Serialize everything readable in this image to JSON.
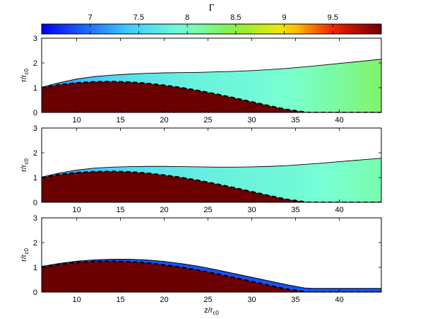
{
  "chart_data": {
    "type": "heatmap",
    "colorbar": {
      "title": "Γ",
      "range": [
        6.5,
        10.0
      ],
      "ticks": [
        7,
        7.5,
        8,
        8.5,
        9,
        9.5
      ],
      "tick_labels": [
        "7",
        "7.5",
        "8",
        "8.5",
        "9",
        "9.5"
      ],
      "colormap": "blue-cyan-green-yellow-red-darkred"
    },
    "xlabel_main": "z/r",
    "xlabel_sub": "c0",
    "ylabel_main": "r/r",
    "ylabel_sub": "c0",
    "xlim": [
      6,
      44.8
    ],
    "ylim": [
      0,
      3
    ],
    "xticks": [
      10,
      15,
      20,
      25,
      30,
      35,
      40
    ],
    "xtick_labels": [
      "10",
      "15",
      "20",
      "25",
      "30",
      "35",
      "40"
    ],
    "yticks": [
      0,
      1,
      2,
      3
    ],
    "ytick_labels": [
      "0",
      "1",
      "2",
      "3"
    ],
    "inner_boundary_color": "#6b0000",
    "panels": [
      {
        "id": "top",
        "show_xlabel": false,
        "outer_boundary": {
          "x": [
            6,
            8,
            10,
            12,
            14,
            16,
            18,
            20,
            22,
            24,
            26,
            28,
            30,
            32,
            34,
            36,
            38,
            40,
            42,
            44.8
          ],
          "y": [
            1.02,
            1.2,
            1.35,
            1.45,
            1.51,
            1.55,
            1.58,
            1.6,
            1.61,
            1.62,
            1.64,
            1.66,
            1.69,
            1.73,
            1.78,
            1.84,
            1.91,
            1.98,
            2.05,
            2.15
          ]
        },
        "inner_boundary": {
          "x": [
            6,
            8,
            10,
            12,
            14,
            16,
            18,
            20,
            22,
            24,
            26,
            28,
            30,
            32,
            34,
            36,
            36.5,
            44.8
          ],
          "y": [
            1.0,
            1.12,
            1.2,
            1.24,
            1.25,
            1.23,
            1.18,
            1.1,
            1.0,
            0.88,
            0.74,
            0.59,
            0.43,
            0.27,
            0.12,
            0.02,
            0.0,
            0.0
          ]
        },
        "gamma_vs_z": {
          "x": [
            6,
            10,
            15,
            20,
            25,
            30,
            35,
            40,
            44.8
          ],
          "gamma": [
            7.1,
            7.3,
            7.6,
            7.75,
            7.85,
            7.9,
            8.0,
            8.15,
            8.35
          ]
        }
      },
      {
        "id": "middle",
        "show_xlabel": false,
        "outer_boundary": {
          "x": [
            6,
            8,
            10,
            12,
            14,
            16,
            18,
            20,
            22,
            24,
            26,
            28,
            30,
            32,
            34,
            36,
            38,
            40,
            42,
            44.8
          ],
          "y": [
            1.02,
            1.18,
            1.3,
            1.38,
            1.42,
            1.44,
            1.45,
            1.45,
            1.44,
            1.43,
            1.42,
            1.42,
            1.43,
            1.45,
            1.48,
            1.53,
            1.58,
            1.64,
            1.7,
            1.78
          ]
        },
        "inner_boundary": {
          "x": [
            6,
            8,
            10,
            12,
            14,
            16,
            18,
            20,
            22,
            24,
            26,
            28,
            30,
            32,
            34,
            36,
            36.5,
            44.8
          ],
          "y": [
            1.0,
            1.12,
            1.2,
            1.24,
            1.25,
            1.23,
            1.18,
            1.1,
            1.0,
            0.88,
            0.74,
            0.59,
            0.43,
            0.27,
            0.12,
            0.02,
            0.0,
            0.0
          ]
        },
        "gamma_vs_z": {
          "x": [
            6,
            10,
            15,
            20,
            25,
            30,
            35,
            40,
            44.8
          ],
          "gamma": [
            7.1,
            7.3,
            7.55,
            7.7,
            7.8,
            7.85,
            7.9,
            8.0,
            8.1
          ]
        }
      },
      {
        "id": "bottom",
        "show_xlabel": true,
        "outer_boundary": {
          "x": [
            6,
            8,
            10,
            12,
            14,
            16,
            18,
            20,
            22,
            24,
            26,
            28,
            30,
            32,
            34,
            36,
            37,
            44.8
          ],
          "y": [
            1.04,
            1.16,
            1.25,
            1.3,
            1.33,
            1.33,
            1.3,
            1.24,
            1.15,
            1.04,
            0.9,
            0.75,
            0.6,
            0.45,
            0.3,
            0.17,
            0.15,
            0.15
          ]
        },
        "inner_boundary": {
          "x": [
            6,
            8,
            10,
            12,
            14,
            16,
            18,
            20,
            22,
            24,
            26,
            28,
            30,
            32,
            34,
            36,
            36.5,
            44.8
          ],
          "y": [
            1.0,
            1.12,
            1.2,
            1.24,
            1.25,
            1.23,
            1.18,
            1.1,
            1.0,
            0.88,
            0.74,
            0.59,
            0.43,
            0.27,
            0.12,
            0.02,
            0.0,
            0.0
          ]
        },
        "gamma_vs_z": {
          "x": [
            6,
            44.8
          ],
          "gamma": [
            6.85,
            6.85
          ]
        }
      }
    ]
  }
}
